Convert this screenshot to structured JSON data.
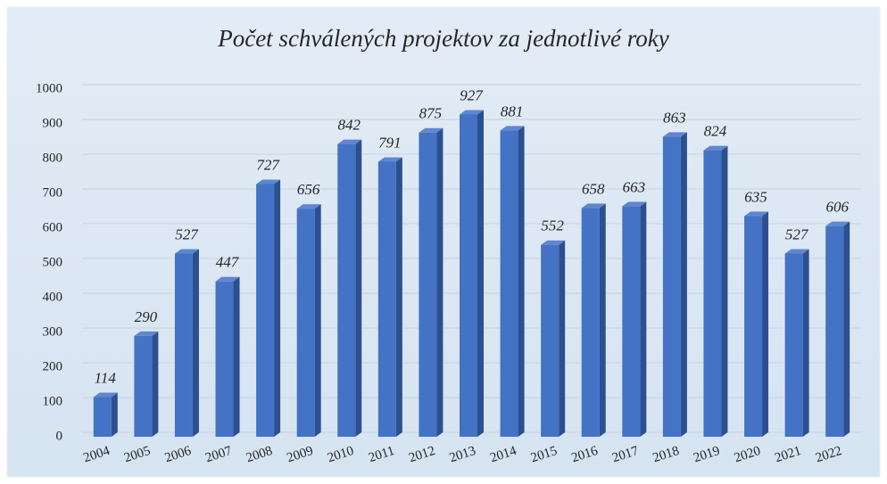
{
  "chart_data": {
    "type": "bar3d",
    "title": "Počet schválených projektov za jednotlivé roky",
    "categories": [
      "2004",
      "2005",
      "2006",
      "2007",
      "2008",
      "2009",
      "2010",
      "2011",
      "2012",
      "2013",
      "2014",
      "2015",
      "2016",
      "2017",
      "2018",
      "2019",
      "2020",
      "2021",
      "2022"
    ],
    "values": [
      114,
      290,
      527,
      447,
      727,
      656,
      842,
      791,
      875,
      927,
      881,
      552,
      658,
      663,
      863,
      824,
      635,
      527,
      606
    ],
    "color": "#4472c4",
    "ylim": [
      0,
      1000
    ],
    "yticks": [
      0,
      100,
      200,
      300,
      400,
      500,
      600,
      700,
      800,
      900,
      1000
    ],
    "grid": true
  }
}
